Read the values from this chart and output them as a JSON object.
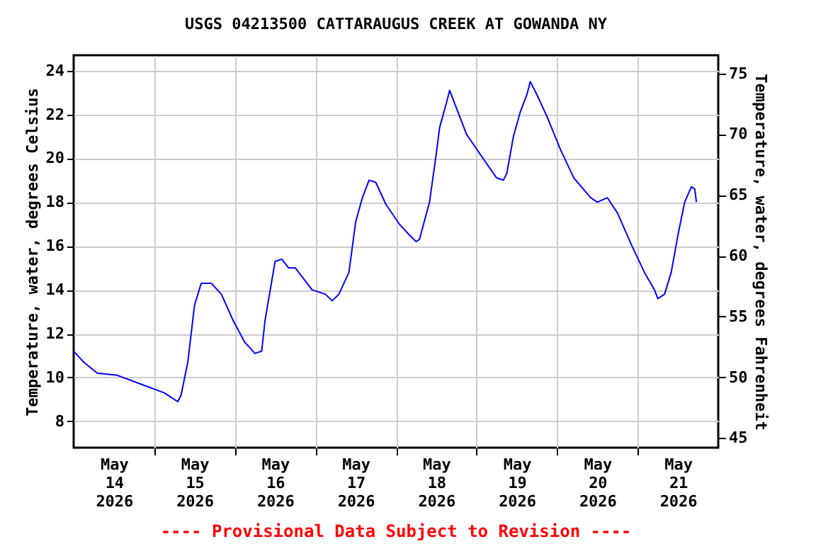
{
  "chart_data": {
    "type": "line",
    "title": "USGS 04213500 CATTARAUGUS CREEK AT GOWANDA NY",
    "ylabel": "Temperature, water, degrees Celsius",
    "y2label": "Temperature, water, degrees Fahrenheit",
    "annotations": [
      "---- Provisional Data Subject to Revision ----"
    ],
    "x": [
      "2026-05-14T00:00",
      "2026-05-14T03:00",
      "2026-05-14T07:00",
      "2026-05-14T13:00",
      "2026-05-14T20:00",
      "2026-05-15T03:00",
      "2026-05-15T07:00",
      "2026-05-15T08:00",
      "2026-05-15T10:00",
      "2026-05-15T12:00",
      "2026-05-15T14:00",
      "2026-05-15T17:00",
      "2026-05-15T20:00",
      "2026-05-15T23:30",
      "2026-05-16T03:00",
      "2026-05-16T06:00",
      "2026-05-16T08:00",
      "2026-05-16T09:00",
      "2026-05-16T12:00",
      "2026-05-16T14:00",
      "2026-05-16T16:00",
      "2026-05-16T18:00",
      "2026-05-16T23:00",
      "2026-05-17T03:00",
      "2026-05-17T05:00",
      "2026-05-17T07:00",
      "2026-05-17T10:00",
      "2026-05-17T12:00",
      "2026-05-17T14:00",
      "2026-05-17T16:00",
      "2026-05-17T18:00",
      "2026-05-17T21:00",
      "2026-05-18T01:00",
      "2026-05-18T04:00",
      "2026-05-18T06:00",
      "2026-05-18T07:00",
      "2026-05-18T10:00",
      "2026-05-18T12:00",
      "2026-05-18T13:00",
      "2026-05-18T15:00",
      "2026-05-18T16:00",
      "2026-05-18T18:00",
      "2026-05-18T21:00",
      "2026-05-19T01:00",
      "2026-05-19T06:00",
      "2026-05-19T08:00",
      "2026-05-19T09:00",
      "2026-05-19T11:00",
      "2026-05-19T13:00",
      "2026-05-19T15:00",
      "2026-05-19T16:00",
      "2026-05-19T18:00",
      "2026-05-19T21:00",
      "2026-05-20T01:00",
      "2026-05-20T05:00",
      "2026-05-20T10:00",
      "2026-05-20T12:00",
      "2026-05-20T15:00",
      "2026-05-20T18:00",
      "2026-05-20T22:00",
      "2026-05-21T02:00",
      "2026-05-21T05:00",
      "2026-05-21T06:00",
      "2026-05-21T08:00",
      "2026-05-21T10:00",
      "2026-05-21T12:00",
      "2026-05-21T14:00",
      "2026-05-21T16:00",
      "2026-05-21T17:00",
      "2026-05-21T17:30"
    ],
    "series": [
      {
        "color": "#0000ff",
        "values": [
          11.2,
          10.7,
          10.2,
          10.1,
          9.7,
          9.3,
          8.9,
          9.2,
          10.7,
          13.3,
          14.3,
          14.3,
          13.8,
          12.6,
          11.6,
          11.1,
          11.2,
          12.6,
          15.3,
          15.4,
          15.0,
          15.0,
          14.0,
          13.8,
          13.5,
          13.8,
          14.8,
          17.1,
          18.2,
          19.0,
          18.9,
          17.9,
          17.0,
          16.5,
          16.2,
          16.3,
          18.0,
          20.2,
          21.4,
          22.5,
          23.1,
          22.3,
          21.1,
          20.2,
          19.1,
          19.0,
          19.3,
          21.0,
          22.1,
          22.9,
          23.5,
          22.9,
          21.9,
          20.4,
          19.1,
          18.2,
          18.0,
          18.2,
          17.5,
          16.1,
          14.8,
          14.0,
          13.6,
          13.8,
          14.8,
          16.5,
          18.0,
          18.7,
          18.6,
          18.0
        ]
      }
    ],
    "xlim": [
      "2026-05-14T00:00",
      "2026-05-22T00:00"
    ],
    "xticks": [
      {
        "value": "2026-05-15T00:00",
        "label": null
      },
      {
        "value": "2026-05-16T00:00",
        "label": null
      },
      {
        "value": "2026-05-17T00:00",
        "label": null
      },
      {
        "value": "2026-05-18T00:00",
        "label": null
      },
      {
        "value": "2026-05-19T00:00",
        "label": null
      },
      {
        "value": "2026-05-20T00:00",
        "label": null
      },
      {
        "value": "2026-05-21T00:00",
        "label": null
      },
      {
        "value": "2026-05-14T12:00",
        "label": "May\n14\n2026"
      },
      {
        "value": "2026-05-15T12:00",
        "label": "May\n15\n2026"
      },
      {
        "value": "2026-05-16T12:00",
        "label": "May\n16\n2026"
      },
      {
        "value": "2026-05-17T12:00",
        "label": "May\n17\n2026"
      },
      {
        "value": "2026-05-18T12:00",
        "label": "May\n18\n2026"
      },
      {
        "value": "2026-05-19T12:00",
        "label": "May\n19\n2026"
      },
      {
        "value": "2026-05-20T12:00",
        "label": "May\n20\n2026"
      },
      {
        "value": "2026-05-21T12:00",
        "label": "May\n21\n2026"
      }
    ],
    "ylim": [
      6.8,
      24.7
    ],
    "yticks": [
      8,
      10,
      12,
      14,
      16,
      18,
      20,
      22,
      24
    ],
    "y2lim": [
      44.2,
      76.5
    ],
    "y2ticks": [
      45,
      50,
      55,
      60,
      65,
      70,
      75
    ],
    "grid": true,
    "legend": false
  }
}
